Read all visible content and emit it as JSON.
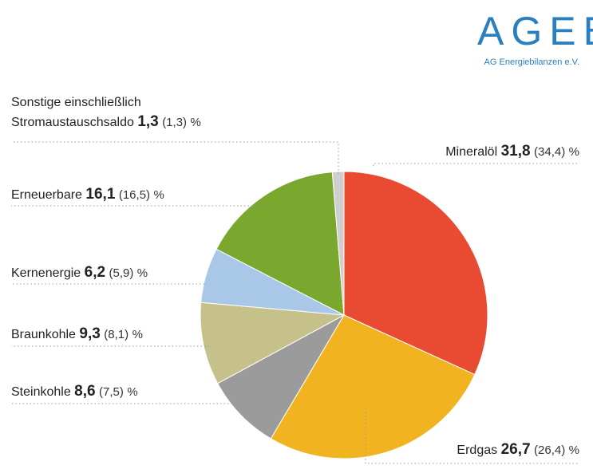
{
  "logo": {
    "text": "AGEB",
    "subtitle": "AG Energiebilanzen e.V."
  },
  "chart_data": {
    "type": "pie",
    "unit": "%",
    "slices": [
      {
        "name": "Mineralöl",
        "value": 31.8,
        "value_label": "31,8",
        "prev_label": "(34,4)",
        "color": "#e84b31"
      },
      {
        "name": "Erdgas",
        "value": 26.7,
        "value_label": "26,7",
        "prev_label": "(26,4)",
        "color": "#f2b320"
      },
      {
        "name": "Steinkohle",
        "value": 8.6,
        "value_label": "8,6",
        "prev_label": "(7,5)",
        "color": "#9b9b9b"
      },
      {
        "name": "Braunkohle",
        "value": 9.3,
        "value_label": "9,3",
        "prev_label": "(8,1)",
        "color": "#c6c18a"
      },
      {
        "name": "Kernenergie",
        "value": 6.2,
        "value_label": "6,2",
        "prev_label": "(5,9)",
        "color": "#a9c8e8"
      },
      {
        "name": "Erneuerbare",
        "value": 16.1,
        "value_label": "16,1",
        "prev_label": "(16,5)",
        "color": "#7aa82e"
      },
      {
        "name_line1": "Sonstige einschließlich",
        "name": "Stromaustauschsaldo",
        "value": 1.3,
        "value_label": "1,3",
        "prev_label": "(1,3)",
        "color": "#cfcfcf"
      }
    ]
  }
}
